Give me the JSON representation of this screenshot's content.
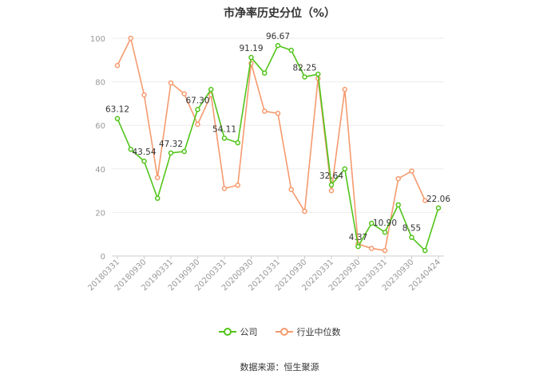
{
  "chart_data": {
    "type": "line",
    "title": "市净率历史分位（%）",
    "ylim": [
      0,
      100
    ],
    "yticks": [
      0,
      20,
      40,
      60,
      80,
      100
    ],
    "x_tick_labels": [
      "20180331",
      "20180930",
      "20190331",
      "20190930",
      "20200331",
      "20200930",
      "20210331",
      "20210930",
      "20220331",
      "20220930",
      "20230331",
      "20230930",
      "20240424"
    ],
    "grid": true,
    "legend_position": "bottom",
    "x_count": 25,
    "series": [
      {
        "name": "公司",
        "color": "#52c41a",
        "values": [
          63.12,
          49,
          43.54,
          26.5,
          47.32,
          48,
          67.3,
          76.5,
          54.11,
          52,
          91.19,
          84,
          96.67,
          94.5,
          82.25,
          83.5,
          32.64,
          40,
          4.37,
          15,
          10.9,
          23.5,
          8.55,
          2.5,
          22.06
        ],
        "labels": {
          "0": "63.12",
          "2": "43.54",
          "4": "47.32",
          "6": "67.30",
          "8": "54.11",
          "10": "91.19",
          "12": "96.67",
          "14": "82.25",
          "16": "32.64",
          "18": "4.37",
          "20": "10.90",
          "22": "8.55",
          "24": "22.06"
        }
      },
      {
        "name": "行业中位数",
        "color": "#f59a6e",
        "values": [
          87.5,
          100,
          74,
          36,
          79.5,
          74.5,
          60.5,
          74,
          31,
          32.5,
          88.5,
          66.5,
          65.5,
          30.5,
          20.5,
          81.5,
          30,
          76.5,
          5.5,
          3.5,
          2.5,
          35.5,
          39,
          25.5,
          null
        ]
      }
    ]
  },
  "legend": {
    "company": "公司",
    "industry": "行业中位数"
  },
  "source": "数据来源：恒生聚源"
}
